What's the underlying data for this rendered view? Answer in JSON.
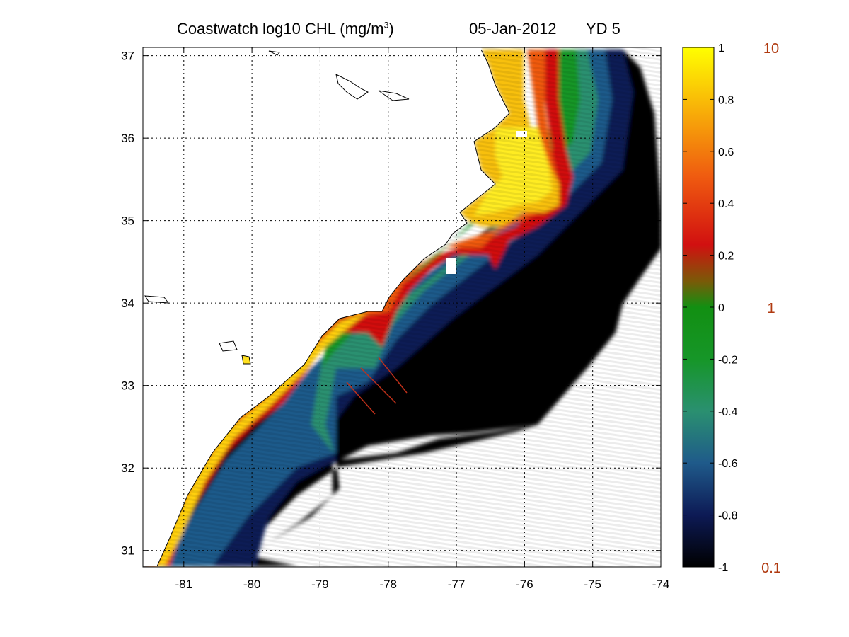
{
  "title": {
    "main_prefix": "Coastwatch  log10  CHL (mg/m",
    "sup": "3",
    "main_suffix": ")",
    "date": "05-Jan-2012",
    "yd": "YD 5"
  },
  "map": {
    "lon_ticks": [
      "-81",
      "-80",
      "-79",
      "-78",
      "-77",
      "-76",
      "-75",
      "-74"
    ],
    "lat_ticks": [
      "37",
      "36",
      "35",
      "34",
      "33",
      "32",
      "31"
    ],
    "lon_range": [
      -81.6,
      -74
    ],
    "lat_range": [
      30.8,
      37.1
    ],
    "grid": "dotted"
  },
  "colorbar": {
    "left_labels": [
      "1",
      "0.8",
      "0.6",
      "0.4",
      "0.2",
      "0",
      "-0.2",
      "-0.4",
      "-0.6",
      "-0.8",
      "-1"
    ],
    "right_labels": [
      "10",
      "1",
      "0.1"
    ],
    "range": [
      -1,
      1
    ],
    "colors": [
      "#000000",
      "#0d1a55",
      "#1f5a8a",
      "#2a9070",
      "#169628",
      "#128f12",
      "#7a5a08",
      "#d11010",
      "#ef5a10",
      "#f8b008",
      "#ffff00"
    ]
  }
}
